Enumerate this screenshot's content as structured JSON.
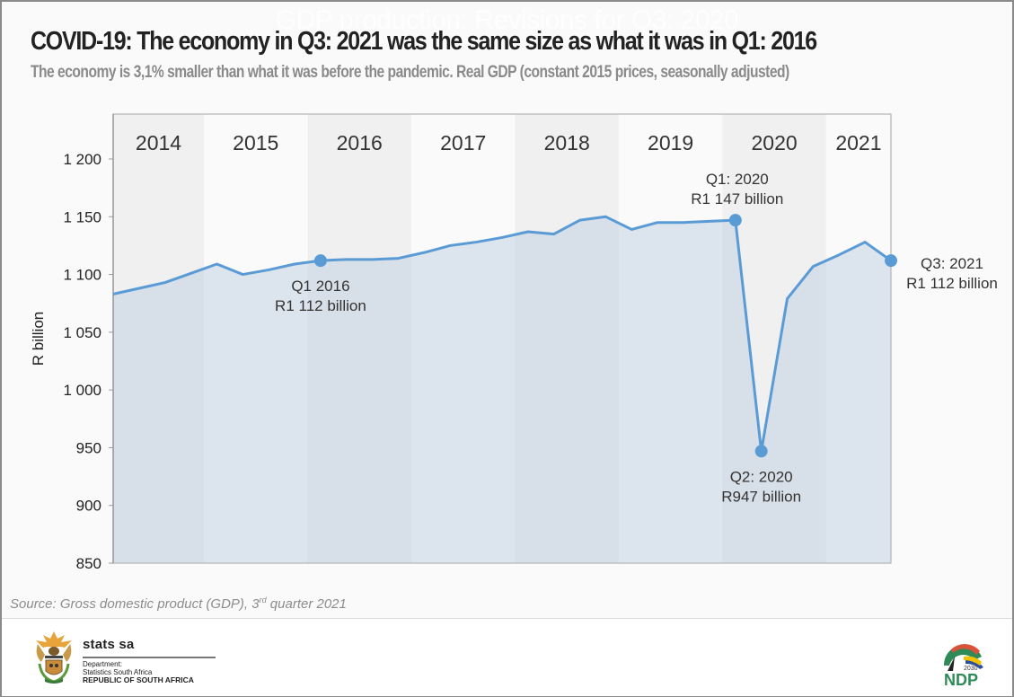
{
  "watermark": "GDP production: Revisions for Q3: 2020",
  "title": "COVID-19: The economy in Q3: 2021 was the same size as what it was in Q1: 2016",
  "subtitle": "The economy is 3,1% smaller than what it was before the pandemic. Real GDP (constant 2015 prices, seasonally adjusted)",
  "source": {
    "prefix": "Source: Gross domestic product (GDP), 3",
    "sup": "rd",
    "suffix": " quarter 2021"
  },
  "footer": {
    "brand": "stats sa",
    "dept_line1": "Department:",
    "dept_line2": "Statistics South Africa",
    "dept_line3": "REPUBLIC OF SOUTH AFRICA",
    "ndp_year": "2030",
    "ndp_text": "NDP"
  },
  "colors": {
    "line": "#5b9bd5",
    "area": "#c5d2e6",
    "band_dark": "#f0f0f0",
    "band_light": "#fafafa",
    "text": "#333333"
  },
  "chart_data": {
    "type": "area",
    "title": "COVID-19: The economy in Q3: 2021 was the same size as what it was in Q1: 2016",
    "xlabel": "",
    "ylabel": "R billion",
    "ylim": [
      850,
      1200
    ],
    "yticks": [
      850,
      900,
      950,
      1000,
      1050,
      1100,
      1150,
      1200
    ],
    "ytick_labels": [
      "850",
      "900",
      "950",
      "1 000",
      "1 050",
      "1 100",
      "1 150",
      "1 200"
    ],
    "grid": false,
    "legend": "none",
    "years": [
      "2014",
      "2015",
      "2016",
      "2017",
      "2018",
      "2019",
      "2020",
      "2021"
    ],
    "quarters_per_year": [
      4,
      4,
      4,
      4,
      4,
      4,
      4,
      3
    ],
    "x": [
      "Q1 2014",
      "Q2 2014",
      "Q3 2014",
      "Q4 2014",
      "Q1 2015",
      "Q2 2015",
      "Q3 2015",
      "Q4 2015",
      "Q1 2016",
      "Q2 2016",
      "Q3 2016",
      "Q4 2016",
      "Q1 2017",
      "Q2 2017",
      "Q3 2017",
      "Q4 2017",
      "Q1 2018",
      "Q2 2018",
      "Q3 2018",
      "Q4 2018",
      "Q1 2019",
      "Q2 2019",
      "Q3 2019",
      "Q4 2019",
      "Q1 2020",
      "Q2 2020",
      "Q3 2020",
      "Q4 2020",
      "Q1 2021",
      "Q2 2021",
      "Q3 2021"
    ],
    "series": [
      {
        "name": "Real GDP",
        "values": [
          1083,
          1088,
          1093,
          1101,
          1109,
          1100,
          1104,
          1109,
          1112,
          1113,
          1113,
          1114,
          1119,
          1125,
          1128,
          1132,
          1137,
          1135,
          1147,
          1150,
          1139,
          1145,
          1145,
          1146,
          1147,
          947,
          1079,
          1107,
          1117,
          1128,
          1112
        ]
      }
    ],
    "annotations": [
      {
        "index": 8,
        "line1": "Q1 2016",
        "line2": "R1 112 billion",
        "position": "below"
      },
      {
        "index": 24,
        "line1": "Q1: 2020",
        "line2": "R1 147 billion",
        "position": "above"
      },
      {
        "index": 25,
        "line1": "Q2: 2020",
        "line2": "R947 billion",
        "position": "below"
      },
      {
        "index": 30,
        "line1": "Q3: 2021",
        "line2": "R1 112 billion",
        "position": "right"
      }
    ]
  }
}
